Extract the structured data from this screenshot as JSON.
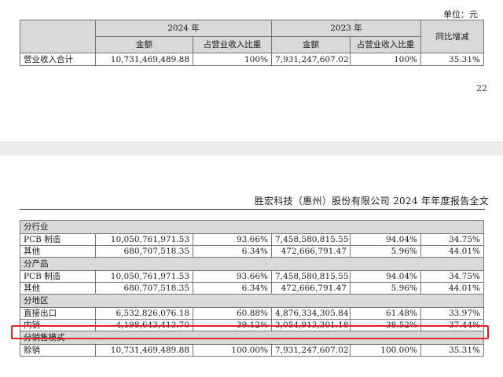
{
  "page1": {
    "unit_label": "单位：元",
    "header": {
      "year_2024": "2024 年",
      "year_2023": "2023 年",
      "amount_2024": "金额",
      "share_2024": "占营业收入比重",
      "amount_2023": "金额",
      "share_2023": "占营业收入比重",
      "yoy": "同比增减"
    },
    "total_row": {
      "label": "营业收入合计",
      "amount_2024": "10,731,469,489.88",
      "share_2024": "100%",
      "amount_2023": "7,931,247,607.02",
      "share_2023": "100%",
      "yoy": "35.31%"
    },
    "page_number": "22"
  },
  "page2": {
    "company_header": "胜宏科技（惠州）股份有限公司 2024 年年度报告全文",
    "sections": [
      {
        "title": "分行业",
        "rows": [
          {
            "label": "PCB 制造",
            "amount_2024": "10,050,761,971.53",
            "share_2024": "93.66%",
            "amount_2023": "7,458,580,815.55",
            "share_2023": "94.04%",
            "yoy": "34.75%"
          },
          {
            "label": "其他",
            "amount_2024": "680,707,518.35",
            "share_2024": "6.34%",
            "amount_2023": "472,666,791.47",
            "share_2023": "5.96%",
            "yoy": "44.01%"
          }
        ]
      },
      {
        "title": "分产品",
        "rows": [
          {
            "label": "PCB 制造",
            "amount_2024": "10,050,761,971.53",
            "share_2024": "93.66%",
            "amount_2023": "7,458,580,815.55",
            "share_2023": "94.04%",
            "yoy": "34.75%"
          },
          {
            "label": "其他",
            "amount_2024": "680,707,518.35",
            "share_2024": "6.34%",
            "amount_2023": "472,666,791.47",
            "share_2023": "5.96%",
            "yoy": "44.01%"
          }
        ]
      },
      {
        "title": "分地区",
        "rows": [
          {
            "label": "直接出口",
            "amount_2024": "6,532,826,076.18",
            "share_2024": "60.88%",
            "amount_2023": "4,876,334,305.84",
            "share_2023": "61.48%",
            "yoy": "33.97%"
          },
          {
            "label": "内销",
            "amount_2024": "4,198,643,413.70",
            "share_2024": "39.12%",
            "amount_2023": "3,054,913,301.18",
            "share_2023": "38.52%",
            "yoy": "37.44%"
          }
        ]
      },
      {
        "title": "分销售模式",
        "rows": [
          {
            "label": "赊销",
            "amount_2024": "10,731,469,489.88",
            "share_2024": "100.00%",
            "amount_2023": "7,931,247,607.02",
            "share_2023": "100.00%",
            "yoy": "35.31%"
          }
        ]
      }
    ]
  },
  "colors": {
    "header_fill": "#d9d9d9",
    "highlight_border": "#e02020",
    "page_gap": "#ececec"
  }
}
